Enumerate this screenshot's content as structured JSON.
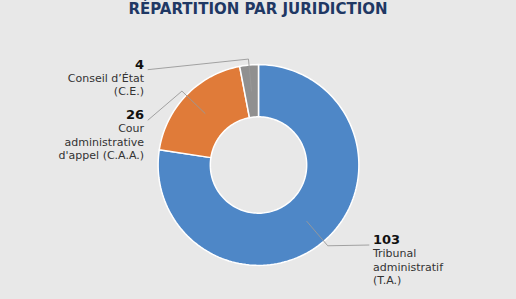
{
  "chart_data": {
    "type": "donut",
    "title": "RÉPARTITION PAR JURIDICTION",
    "categories": [
      "Tribunal\nadministratif\n(T.A.)",
      "Cour\nadministrative\nd'appel (C.A.A.)",
      "Conseil d’État\n(C.E.)"
    ],
    "values": [
      103,
      26,
      4
    ],
    "colors": [
      "#4E87C7",
      "#E07B39",
      "#909090"
    ],
    "data_labels": true
  }
}
